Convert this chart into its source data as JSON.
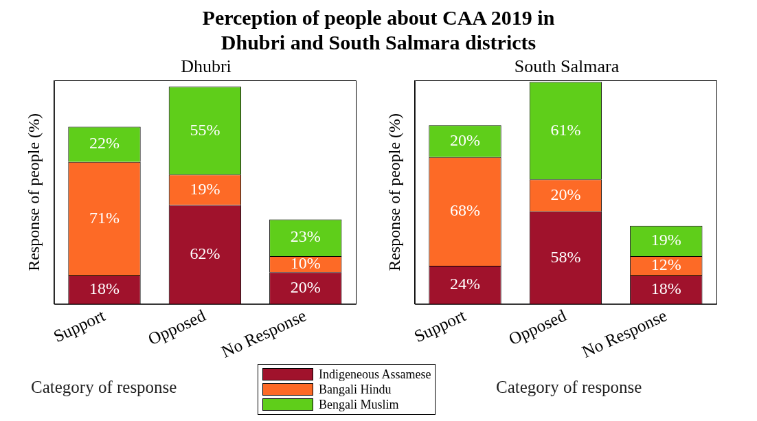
{
  "chart_data": [
    {
      "type": "bar",
      "title": "Perception of people about CAA 2019 in\nDhubri and South Salmara districts",
      "subtitle": "Dhubri",
      "xlabel": "Category of response",
      "ylabel": "Response of people (%)",
      "categories": [
        "Support",
        "Opposed",
        "No Response"
      ],
      "stacked": true,
      "ylim": [
        0,
        140
      ],
      "tick_labels": "x",
      "grid": false,
      "legend": "bottom",
      "series": [
        {
          "name": "Indigeneous Assamese",
          "color": "#a0122c",
          "values": [
            18,
            62,
            20
          ],
          "value_labels": [
            "18%",
            "62%",
            "20%"
          ]
        },
        {
          "name": "Bangali Hindu",
          "color": "#fd6a26",
          "values": [
            71,
            19,
            10
          ],
          "value_labels": [
            "71%",
            "19%",
            "10%"
          ]
        },
        {
          "name": "Bengali Muslim",
          "color": "#5fce1a",
          "values": [
            22,
            55,
            23
          ],
          "value_labels": [
            "22%",
            "55%",
            "23%"
          ]
        }
      ]
    },
    {
      "type": "bar",
      "subtitle": "South Salmara",
      "xlabel": "Category of response",
      "ylabel": "Response of people (%)",
      "categories": [
        "Support",
        "Opposed",
        "No Response"
      ],
      "stacked": true,
      "ylim": [
        0,
        140
      ],
      "tick_labels": "x",
      "grid": false,
      "legend": "bottom",
      "series": [
        {
          "name": "Indigeneous Assamese",
          "color": "#a0122c",
          "values": [
            24,
            58,
            18
          ],
          "value_labels": [
            "24%",
            "58%",
            "18%"
          ]
        },
        {
          "name": "Bangali Hindu",
          "color": "#fd6a26",
          "values": [
            68,
            20,
            12
          ],
          "value_labels": [
            "68%",
            "20%",
            "12%"
          ]
        },
        {
          "name": "Bengali Muslim",
          "color": "#5fce1a",
          "values": [
            20,
            61,
            19
          ],
          "value_labels": [
            "20%",
            "61%",
            "19%"
          ]
        }
      ]
    }
  ]
}
